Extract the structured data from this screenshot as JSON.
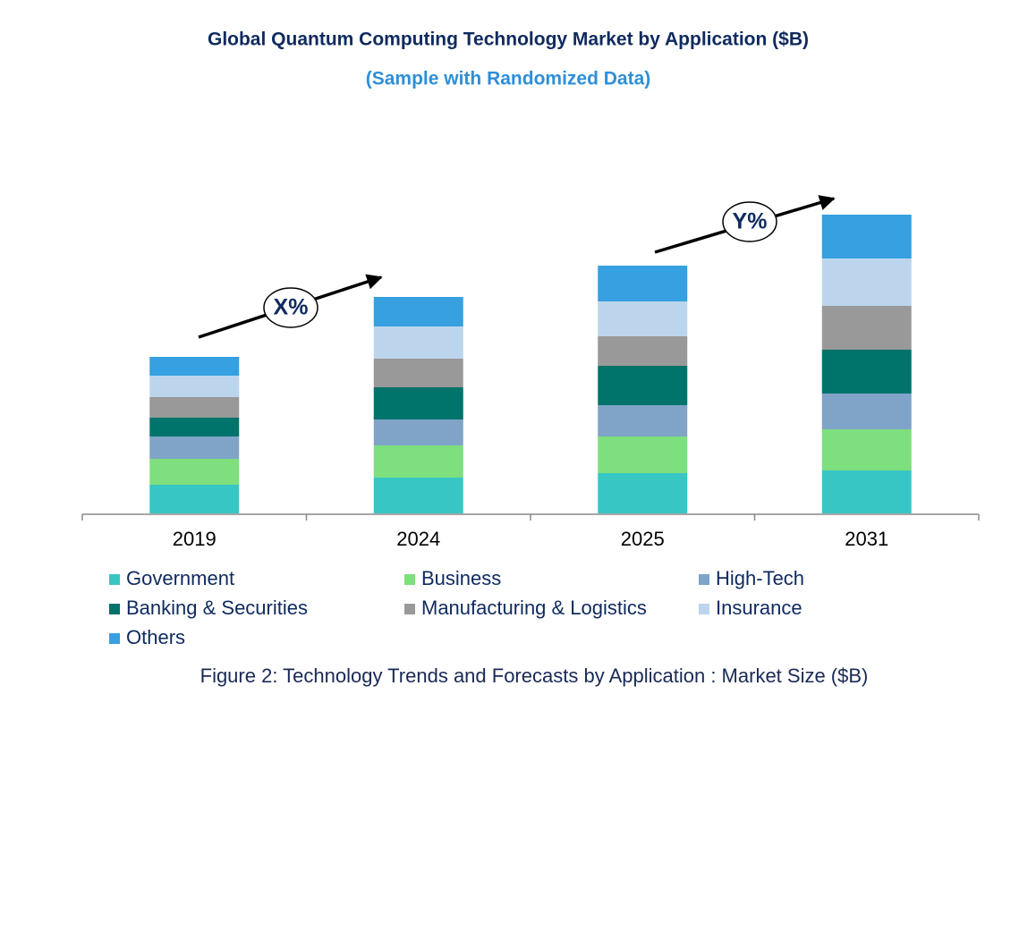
{
  "chart_data": {
    "type": "stacked-bar",
    "title": "Global Quantum Computing Technology Market by Application ($B)",
    "subtitle": "(Sample with Randomized Data)",
    "caption": "Figure 2: Technology Trends and Forecasts by Application : Market Size ($B)",
    "annotations": [
      "X%",
      "Y%"
    ],
    "categories": [
      "2019",
      "2024",
      "2025",
      "2031"
    ],
    "ylim": [
      0,
      334
    ],
    "series": [
      {
        "name": "Government",
        "color": "#38c6c5",
        "values": [
          32,
          40,
          45,
          48
        ]
      },
      {
        "name": "Business",
        "color": "#7ddf7d",
        "values": [
          29,
          36,
          41,
          46
        ]
      },
      {
        "name": "High-Tech",
        "color": "#7fa4c8",
        "values": [
          25,
          29,
          35,
          40
        ]
      },
      {
        "name": "Banking & Securities",
        "color": "#00736a",
        "values": [
          21,
          36,
          44,
          49
        ]
      },
      {
        "name": "Manufacturing & Logistics",
        "color": "#999999",
        "values": [
          23,
          32,
          33,
          49
        ]
      },
      {
        "name": "Insurance",
        "color": "#bcd5ec",
        "values": [
          24,
          36,
          39,
          53
        ]
      },
      {
        "name": "Others",
        "color": "#36a0e0",
        "values": [
          21,
          33,
          40,
          49
        ]
      }
    ]
  }
}
